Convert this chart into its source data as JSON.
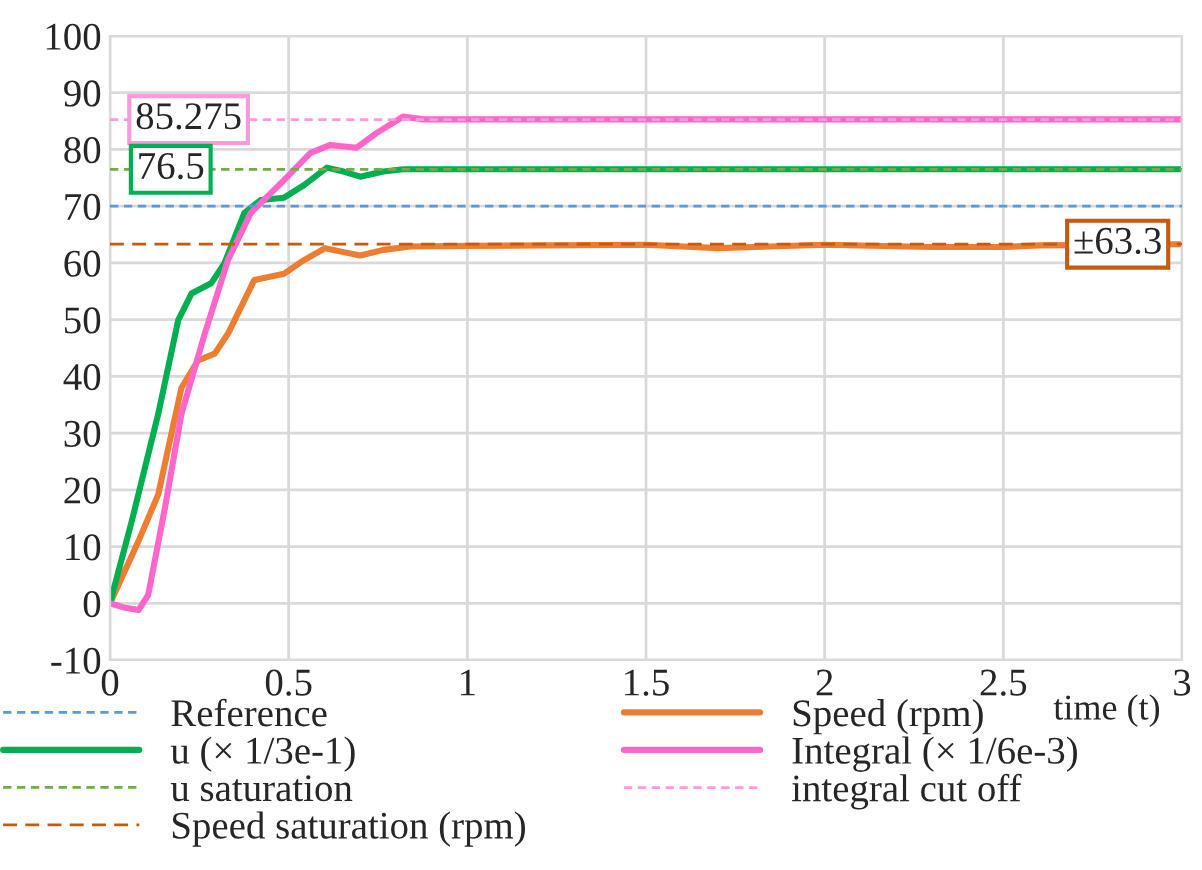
{
  "chart_data": {
    "type": "line",
    "xlabel": "time (t)",
    "xlim": [
      0,
      3
    ],
    "xticks": [
      0,
      0.5,
      1,
      1.5,
      2,
      2.5,
      3
    ],
    "ylim": [
      -10,
      100
    ],
    "yticks": [
      -10,
      0,
      10,
      20,
      30,
      40,
      50,
      60,
      70,
      80,
      90,
      100
    ],
    "grid": true,
    "legend": "bottom",
    "marker": "none",
    "series": [
      {
        "name": "Reference",
        "color": "#5b9bd5",
        "line_style": "dashed",
        "x": [
          0,
          3
        ],
        "values": [
          70,
          70
        ]
      },
      {
        "name": "Speed (rpm)",
        "color": "#ed7d31",
        "line_style": "solid",
        "x": [
          0,
          0.08,
          0.135,
          0.2,
          0.246,
          0.293,
          0.33,
          0.404,
          0.487,
          0.543,
          0.602,
          0.654,
          0.7,
          0.765,
          0.84,
          1.0,
          1.5,
          1.7,
          2.0,
          2.3,
          2.5,
          2.6,
          3.0
        ],
        "values": [
          0,
          11,
          19.2,
          38,
          42.8,
          44,
          47.5,
          57,
          58.1,
          60.5,
          62.6,
          61.9,
          61.3,
          62.3,
          62.9,
          63,
          63.2,
          62.6,
          63.2,
          62.8,
          62.8,
          63.1,
          63.3
        ]
      },
      {
        "name": "u (× 1/3e-1)",
        "color": "#00b050",
        "line_style": "solid",
        "x": [
          0,
          0.061,
          0.135,
          0.191,
          0.228,
          0.283,
          0.32,
          0.376,
          0.422,
          0.487,
          0.543,
          0.607,
          0.654,
          0.7,
          0.765,
          0.82,
          3.0
        ],
        "values": [
          0,
          14.5,
          33.4,
          49.9,
          54.6,
          56.4,
          59.9,
          68.8,
          71.1,
          71.5,
          73.7,
          76.8,
          76.1,
          75.2,
          76.1,
          76.5,
          76.5
        ]
      },
      {
        "name": "Integral (× 1/6e-3)",
        "color": "#ff66cc",
        "line_style": "solid",
        "x": [
          0,
          0.043,
          0.08,
          0.107,
          0.154,
          0.2,
          0.265,
          0.33,
          0.394,
          0.487,
          0.561,
          0.617,
          0.69,
          0.746,
          0.82,
          0.876,
          3.0
        ],
        "values": [
          0,
          -0.8,
          -1.2,
          1.5,
          16.9,
          33.4,
          47.5,
          60.5,
          68.8,
          74.6,
          79.4,
          80.8,
          80.3,
          82.9,
          85.8,
          85.3,
          85.3
        ]
      },
      {
        "name": "u saturation",
        "color": "#70ad47",
        "line_style": "dashed",
        "x": [
          0,
          3
        ],
        "values": [
          76.5,
          76.5
        ]
      },
      {
        "name": "integral cut off",
        "color": "#ff99dd",
        "line_style": "dashed",
        "x": [
          0,
          3
        ],
        "values": [
          85.275,
          85.275
        ]
      },
      {
        "name": "Speed saturation (rpm)",
        "color": "#c55a11",
        "line_style": "dashed",
        "x": [
          0,
          3
        ],
        "values": [
          63.3,
          63.3
        ]
      }
    ],
    "annotations": [
      {
        "text": "85.275",
        "x": 0.22,
        "y": 85.275
      },
      {
        "text": "76.5",
        "x": 0.17,
        "y": 76.5
      },
      {
        "text": "±63.3",
        "x": 2.82,
        "y": 63.3
      }
    ]
  }
}
